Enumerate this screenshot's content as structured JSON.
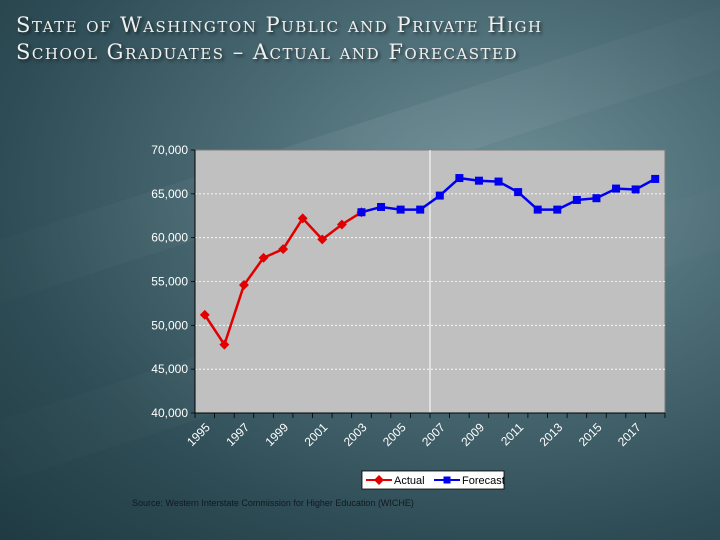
{
  "slide": {
    "title_line1": "State of Washington Public and Private High",
    "title_line2": "School Graduates – Actual and Forecasted",
    "source": "Source:  Western Interstate Commission for Higher Education (WICHE)"
  },
  "colors": {
    "plot_background": "#c0c0c0",
    "actual": "#e00000",
    "forecast": "#0000ee",
    "tick_text": "#ffffff",
    "legend_background": "#ffffff"
  },
  "chart_data": {
    "type": "line",
    "x_tick_labels": [
      "1995",
      "1997",
      "1999",
      "2001",
      "2003",
      "2005",
      "2007",
      "2009",
      "2011",
      "2013",
      "2015",
      "2017"
    ],
    "y_tick_labels": [
      "40,000",
      "45,000",
      "50,000",
      "55,000",
      "60,000",
      "65,000",
      "70,000"
    ],
    "ylim": [
      40000,
      70000
    ],
    "y_ticks": [
      40000,
      45000,
      50000,
      55000,
      60000,
      65000,
      70000
    ],
    "x_range": [
      1995,
      2018
    ],
    "gridlines": "horizontal-dashed",
    "divider_year": 2006.5,
    "legend": {
      "position": "bottom",
      "entries": [
        "Actual",
        "Forecast"
      ]
    },
    "series": [
      {
        "name": "Actual",
        "color": "#e00000",
        "marker": "diamond",
        "x": [
          1995,
          1996,
          1997,
          1998,
          1999,
          2000,
          2001,
          2002,
          2003
        ],
        "values": [
          51200,
          47800,
          54600,
          57700,
          58700,
          62200,
          59800,
          61500,
          62900
        ]
      },
      {
        "name": "Forecast",
        "color": "#0000ee",
        "marker": "square",
        "x": [
          2003,
          2004,
          2005,
          2006,
          2007,
          2008,
          2009,
          2010,
          2011,
          2012,
          2013,
          2014,
          2015,
          2016,
          2017,
          2018
        ],
        "values": [
          62900,
          63500,
          63200,
          63200,
          64800,
          66800,
          66500,
          66400,
          65200,
          63200,
          63200,
          64300,
          64500,
          65600,
          65500,
          66700
        ]
      }
    ]
  }
}
